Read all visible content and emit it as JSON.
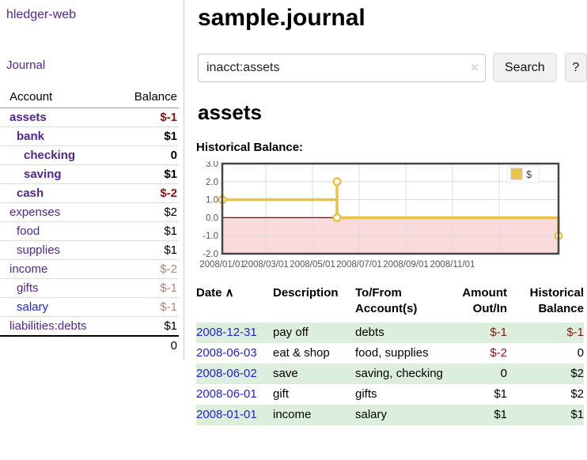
{
  "app": {
    "title": "hledger-web",
    "nav_journal": "Journal"
  },
  "sidebar": {
    "col_account": "Account",
    "col_balance": "Balance",
    "accounts": [
      {
        "name": "assets",
        "indent": 0,
        "bold": true,
        "balance": "$-1",
        "balance_style": "neg"
      },
      {
        "name": "bank",
        "indent": 1,
        "bold": true,
        "balance": "$1",
        "balance_style": "pos"
      },
      {
        "name": "checking",
        "indent": 2,
        "bold": true,
        "balance": "0",
        "balance_style": "pos"
      },
      {
        "name": "saving",
        "indent": 2,
        "bold": true,
        "balance": "$1",
        "balance_style": "pos"
      },
      {
        "name": "cash",
        "indent": 1,
        "bold": true,
        "balance": "$-2",
        "balance_style": "neg"
      },
      {
        "name": "expenses",
        "indent": 0,
        "bold": false,
        "balance": "$2",
        "balance_style": "pos"
      },
      {
        "name": "food",
        "indent": 1,
        "bold": false,
        "balance": "$1",
        "balance_style": "pos"
      },
      {
        "name": "supplies",
        "indent": 1,
        "bold": false,
        "balance": "$1",
        "balance_style": "pos"
      },
      {
        "name": "income",
        "indent": 0,
        "bold": false,
        "balance": "$-2",
        "balance_style": "neg-muted"
      },
      {
        "name": "gifts",
        "indent": 1,
        "bold": false,
        "balance": "$-1",
        "balance_style": "neg-muted"
      },
      {
        "name": "salary",
        "indent": 1,
        "bold": false,
        "balance": "$-1",
        "balance_style": "neg-muted",
        "link_variant": "blue"
      },
      {
        "name": "liabilities:debts",
        "indent": 0,
        "bold": false,
        "balance": "$1",
        "balance_style": "pos"
      }
    ],
    "total": "0"
  },
  "header": {
    "title": "sample.journal"
  },
  "search": {
    "value": "inacct:assets",
    "clear_icon": "×",
    "button_label": "Search",
    "help_label": "?"
  },
  "account_page": {
    "heading": "assets",
    "chart_label": "Historical Balance:"
  },
  "chart_data": {
    "type": "line",
    "style": "step line with circular point markers; area below zero shaded pink; dark red zero line",
    "series": [
      {
        "name": "$",
        "points": [
          [
            "2008-01-01",
            1
          ],
          [
            "2008-06-01",
            2
          ],
          [
            "2008-06-02",
            2
          ],
          [
            "2008-06-03",
            0
          ],
          [
            "2008-12-31",
            -1
          ]
        ]
      }
    ],
    "x_tick_labels": [
      "2008/01/01",
      "2008/03/01",
      "2008/05/01",
      "2008/07/01",
      "2008/09/01",
      "2008/11/01"
    ],
    "y_tick_labels": [
      "3.0",
      "2.0",
      "1.0",
      "0.0",
      "-1.0",
      "-2.0"
    ],
    "ylim": [
      -2,
      3
    ],
    "grid": true,
    "legend": {
      "label": "$",
      "position": "top-right"
    },
    "colors": {
      "line": "#e9c348",
      "marker_fill": "#ffffff",
      "negative_region": "#fadada",
      "zero_line": "#8b0000",
      "grid": "#dcdcdc",
      "border": "#474747"
    }
  },
  "register": {
    "columns": [
      "Date",
      "Description",
      "To/From Account(s)",
      "Amount Out/In",
      "Historical Balance"
    ],
    "sort_icon": "∧",
    "rows": [
      {
        "date": "2008-12-31",
        "description": "pay off",
        "accounts": "debts",
        "amount": "$-1",
        "balance": "$-1"
      },
      {
        "date": "2008-06-03",
        "description": "eat & shop",
        "accounts": "food, supplies",
        "amount": "$-2",
        "balance": "0"
      },
      {
        "date": "2008-06-02",
        "description": "save",
        "accounts": "saving, checking",
        "amount": "0",
        "balance": "$2"
      },
      {
        "date": "2008-06-01",
        "description": "gift",
        "accounts": "gifts",
        "amount": "$1",
        "balance": "$2"
      },
      {
        "date": "2008-01-01",
        "description": "income",
        "accounts": "salary",
        "amount": "$1",
        "balance": "$1"
      }
    ]
  }
}
